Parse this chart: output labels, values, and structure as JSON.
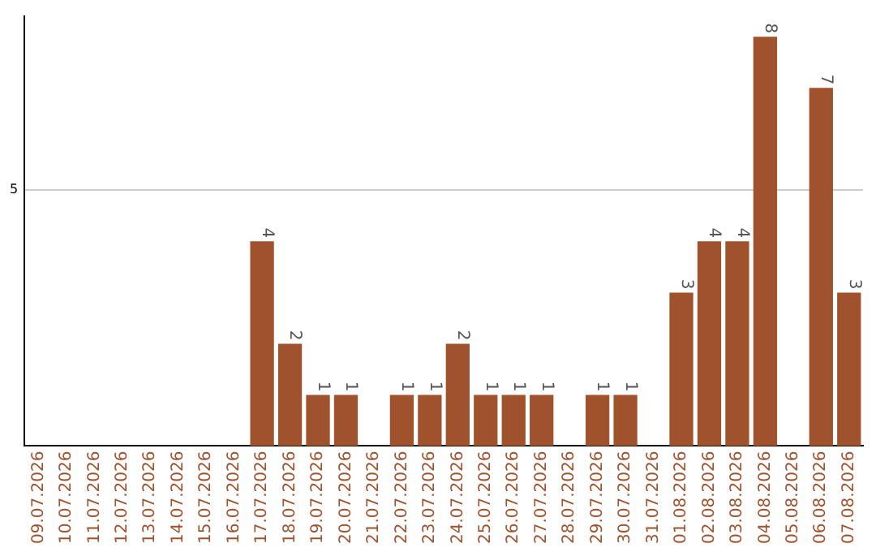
{
  "chart_data": {
    "type": "bar",
    "categories": [
      "09.07.2026",
      "10.07.2026",
      "11.07.2026",
      "12.07.2026",
      "13.07.2026",
      "14.07.2026",
      "15.07.2026",
      "16.07.2026",
      "17.07.2026",
      "18.07.2026",
      "19.07.2026",
      "20.07.2026",
      "21.07.2026",
      "22.07.2026",
      "23.07.2026",
      "24.07.2026",
      "25.07.2026",
      "26.07.2026",
      "27.07.2026",
      "28.07.2026",
      "29.07.2026",
      "30.07.2026",
      "31.07.2026",
      "01.08.2026",
      "02.08.2026",
      "03.08.2026",
      "04.08.2026",
      "05.08.2026",
      "06.08.2026",
      "07.08.2026"
    ],
    "values": [
      0,
      0,
      0,
      0,
      0,
      0,
      0,
      0,
      4,
      2,
      1,
      1,
      0,
      1,
      1,
      2,
      1,
      1,
      1,
      0,
      1,
      1,
      0,
      3,
      4,
      4,
      8,
      0,
      7,
      3
    ],
    "value_labels": [
      null,
      null,
      null,
      null,
      null,
      null,
      null,
      null,
      "4",
      "2",
      "1",
      "1",
      null,
      "1",
      "1",
      "2",
      "1",
      "1",
      "1",
      null,
      "1",
      "1",
      null,
      "3",
      "4",
      "4",
      "8",
      null,
      "7",
      "3"
    ],
    "color": "#a0522d",
    "ylim": [
      0,
      8.4
    ],
    "yticks": [
      5
    ],
    "grid": "y",
    "legend": false
  }
}
